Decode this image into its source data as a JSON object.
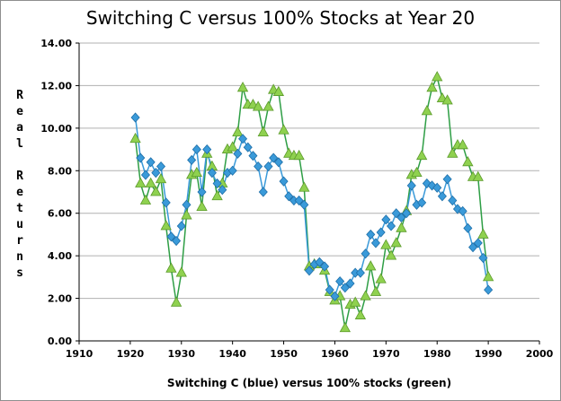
{
  "chart_data": {
    "type": "line",
    "title": "Switching C versus 100% Stocks at Year 20",
    "xlabel": "Switching C (blue) versus 100% stocks (green)",
    "ylabel": "Real Returns",
    "xlim": [
      1910,
      2000
    ],
    "ylim": [
      0,
      14
    ],
    "x_ticks": [
      "1910",
      "1920",
      "1930",
      "1940",
      "1950",
      "1960",
      "1970",
      "1980",
      "1990",
      "2000"
    ],
    "y_ticks": [
      "0.00",
      "2.00",
      "4.00",
      "6.00",
      "8.00",
      "10.00",
      "12.00",
      "14.00"
    ],
    "grid": true,
    "colors": {
      "switching_c": "#3a9ad9",
      "stocks_100": "#8fd14f",
      "stocks_line": "#2e9e45",
      "grid": "#b0b0b0"
    },
    "series": [
      {
        "marker": "diamond",
        "x": [
          1921,
          1922,
          1923,
          1924,
          1925,
          1926,
          1927,
          1928,
          1929,
          1930,
          1931,
          1932,
          1933,
          1934,
          1935,
          1936,
          1937,
          1938,
          1939,
          1940,
          1941,
          1942,
          1943,
          1944,
          1945,
          1946,
          1947,
          1948,
          1949,
          1950,
          1951,
          1952,
          1953,
          1954,
          1955,
          1956,
          1957,
          1958,
          1959,
          1960,
          1961,
          1962,
          1963,
          1964,
          1965,
          1966,
          1967,
          1968,
          1969,
          1970,
          1971,
          1972,
          1973,
          1974,
          1975,
          1976,
          1977,
          1978,
          1979,
          1980,
          1981,
          1982,
          1983,
          1984,
          1985,
          1986,
          1987,
          1988,
          1989,
          1990
        ],
        "values": [
          10.5,
          8.6,
          7.8,
          8.4,
          7.9,
          8.2,
          6.5,
          4.9,
          4.7,
          5.4,
          6.4,
          8.5,
          9.0,
          7.0,
          9.0,
          7.9,
          7.4,
          7.1,
          7.9,
          8.0,
          8.8,
          9.5,
          9.1,
          8.7,
          8.2,
          7.0,
          8.2,
          8.6,
          8.4,
          7.5,
          6.8,
          6.6,
          6.6,
          6.4,
          3.3,
          3.6,
          3.7,
          3.5,
          2.4,
          2.1,
          2.8,
          2.5,
          2.7,
          3.2,
          3.2,
          4.1,
          5.0,
          4.6,
          5.1,
          5.7,
          5.4,
          6.0,
          5.8,
          6.0,
          7.3,
          6.4,
          6.5,
          7.4,
          7.3,
          7.2,
          6.8,
          7.6,
          6.6,
          6.2,
          6.1,
          5.3,
          4.4,
          4.6,
          3.9,
          2.4
        ]
      },
      {
        "marker": "triangle",
        "x": [
          1921,
          1922,
          1923,
          1924,
          1925,
          1926,
          1927,
          1928,
          1929,
          1930,
          1931,
          1932,
          1933,
          1934,
          1935,
          1936,
          1937,
          1938,
          1939,
          1940,
          1941,
          1942,
          1943,
          1944,
          1945,
          1946,
          1947,
          1948,
          1949,
          1950,
          1951,
          1952,
          1953,
          1954,
          1955,
          1956,
          1957,
          1958,
          1959,
          1960,
          1961,
          1962,
          1963,
          1964,
          1965,
          1966,
          1967,
          1968,
          1969,
          1970,
          1971,
          1972,
          1973,
          1974,
          1975,
          1976,
          1977,
          1978,
          1979,
          1980,
          1981,
          1982,
          1983,
          1984,
          1985,
          1986,
          1987,
          1988,
          1989,
          1990
        ],
        "values": [
          9.5,
          7.4,
          6.6,
          7.4,
          7.0,
          7.6,
          5.4,
          3.4,
          1.8,
          3.2,
          5.9,
          7.8,
          7.9,
          6.3,
          8.8,
          8.2,
          6.8,
          7.4,
          9.0,
          9.1,
          9.8,
          11.9,
          11.1,
          11.1,
          11.0,
          9.8,
          11.0,
          11.8,
          11.7,
          9.9,
          8.8,
          8.7,
          8.7,
          7.2,
          3.5,
          3.6,
          3.6,
          3.3,
          2.3,
          1.9,
          2.1,
          0.6,
          1.7,
          1.8,
          1.2,
          2.1,
          3.5,
          2.3,
          2.9,
          4.5,
          4.0,
          4.6,
          5.3,
          6.1,
          7.8,
          7.9,
          8.7,
          10.8,
          11.9,
          12.4,
          11.4,
          11.3,
          8.8,
          9.2,
          9.2,
          8.4,
          7.7,
          7.7,
          5.0,
          3.0
        ]
      }
    ]
  }
}
